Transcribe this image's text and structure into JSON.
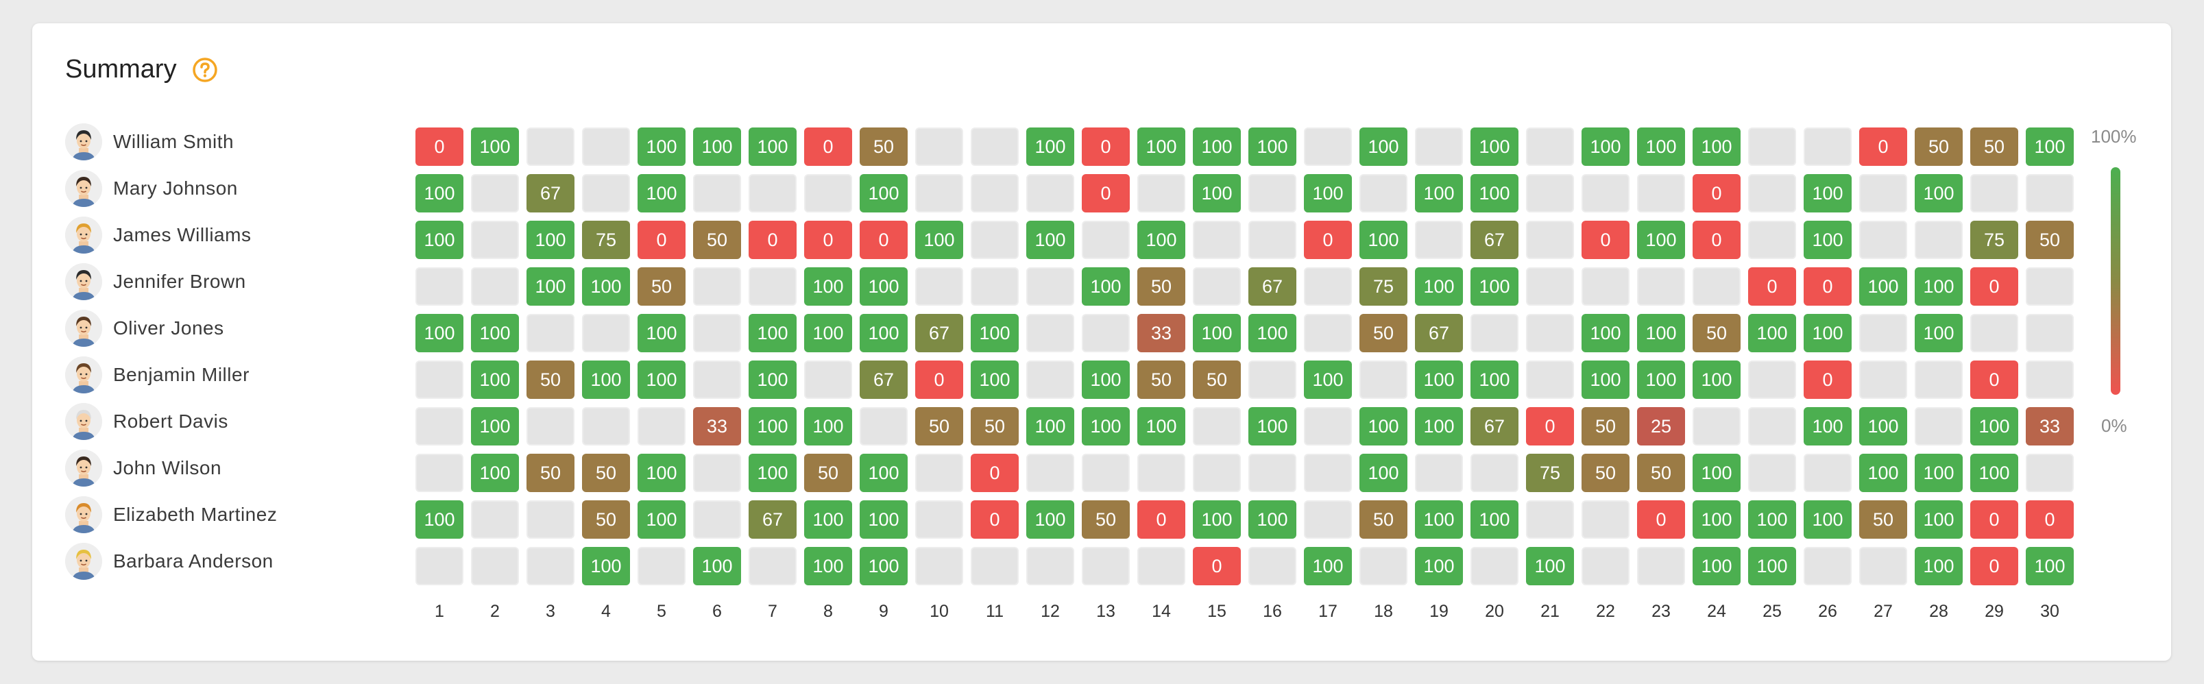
{
  "header": {
    "title": "Summary",
    "help_icon": "help-circle-icon",
    "accent_color": "#f5a623"
  },
  "colors": {
    "c100": "#4caf50",
    "c75": "#7d8b45",
    "c67": "#7d8b45",
    "c50": "#9b7b45",
    "c33": "#b8654b",
    "c25": "#c25a4e",
    "c0": "#ef5350",
    "empty": "#e4e4e4"
  },
  "legend": {
    "top_label": "100%",
    "bottom_label": "0%",
    "gradient_top": "#4caf50",
    "gradient_bottom": "#ef5350"
  },
  "columns": [
    "1",
    "2",
    "3",
    "4",
    "5",
    "6",
    "7",
    "8",
    "9",
    "10",
    "11",
    "12",
    "13",
    "14",
    "15",
    "16",
    "17",
    "18",
    "19",
    "20",
    "21",
    "22",
    "23",
    "24",
    "25",
    "26",
    "27",
    "28",
    "29",
    "30"
  ],
  "people": [
    {
      "name": "William Smith",
      "avatar": "avatar-icon",
      "values": [
        "0",
        "100",
        "",
        "",
        "100",
        "100",
        "100",
        "0",
        "50",
        "",
        "",
        "100",
        "0",
        "100",
        "100",
        "100",
        "",
        "100",
        "",
        "100",
        "",
        "100",
        "100",
        "100",
        "",
        "",
        "0",
        "50",
        "50",
        "100"
      ]
    },
    {
      "name": "Mary Johnson",
      "avatar": "avatar-icon",
      "values": [
        "100",
        "",
        "67",
        "",
        "100",
        "",
        "",
        "",
        "100",
        "",
        "",
        "",
        "0",
        "",
        "100",
        "",
        "100",
        "",
        "100",
        "100",
        "",
        "",
        "",
        "0",
        "",
        "100",
        "",
        "100",
        "",
        ""
      ]
    },
    {
      "name": "James Williams",
      "avatar": "avatar-icon",
      "values": [
        "100",
        "",
        "100",
        "75",
        "0",
        "50",
        "0",
        "0",
        "0",
        "100",
        "",
        "100",
        "",
        "100",
        "",
        "",
        "0",
        "100",
        "",
        "67",
        "",
        "0",
        "100",
        "0",
        "",
        "100",
        "",
        "",
        "75",
        "50"
      ]
    },
    {
      "name": "Jennifer Brown",
      "avatar": "avatar-icon",
      "values": [
        "",
        "",
        "100",
        "100",
        "50",
        "",
        "",
        "100",
        "100",
        "",
        "",
        "",
        "100",
        "50",
        "",
        "67",
        "",
        "75",
        "100",
        "100",
        "",
        "",
        "",
        "",
        "0",
        "0",
        "100",
        "100",
        "0",
        ""
      ]
    },
    {
      "name": "Oliver Jones",
      "avatar": "avatar-icon",
      "values": [
        "100",
        "100",
        "",
        "",
        "100",
        "",
        "100",
        "100",
        "100",
        "67",
        "100",
        "",
        "",
        "33",
        "100",
        "100",
        "",
        "50",
        "67",
        "",
        "",
        "100",
        "100",
        "50",
        "100",
        "100",
        "",
        "100",
        "",
        ""
      ]
    },
    {
      "name": "Benjamin Miller",
      "avatar": "avatar-icon",
      "values": [
        "",
        "100",
        "50",
        "100",
        "100",
        "",
        "100",
        "",
        "67",
        "0",
        "100",
        "",
        "100",
        "50",
        "50",
        "",
        "100",
        "",
        "100",
        "100",
        "",
        "100",
        "100",
        "100",
        "",
        "0",
        "",
        "",
        "0",
        ""
      ]
    },
    {
      "name": "Robert Davis",
      "avatar": "avatar-icon",
      "values": [
        "",
        "100",
        "",
        "",
        "",
        "33",
        "100",
        "100",
        "",
        "50",
        "50",
        "100",
        "100",
        "100",
        "",
        "100",
        "",
        "100",
        "100",
        "67",
        "0",
        "50",
        "25",
        "",
        "",
        "100",
        "100",
        "",
        "100",
        "33"
      ]
    },
    {
      "name": "John Wilson",
      "avatar": "avatar-icon",
      "values": [
        "",
        "100",
        "50",
        "50",
        "100",
        "",
        "100",
        "50",
        "100",
        "",
        "0",
        "",
        "",
        "",
        "",
        "",
        "",
        "100",
        "",
        "",
        "75",
        "50",
        "50",
        "100",
        "",
        "",
        "100",
        "100",
        "100",
        ""
      ]
    },
    {
      "name": "Elizabeth Martinez",
      "avatar": "avatar-icon",
      "values": [
        "100",
        "",
        "",
        "50",
        "100",
        "",
        "67",
        "100",
        "100",
        "",
        "0",
        "100",
        "50",
        "0",
        "100",
        "100",
        "",
        "50",
        "100",
        "100",
        "",
        "",
        "0",
        "100",
        "100",
        "100",
        "50",
        "100",
        "0",
        "0"
      ]
    },
    {
      "name": "Barbara Anderson",
      "avatar": "avatar-icon",
      "values": [
        "",
        "",
        "",
        "100",
        "",
        "100",
        "",
        "100",
        "100",
        "",
        "",
        "",
        "",
        "",
        "0",
        "",
        "100",
        "",
        "100",
        "",
        "100",
        "",
        "",
        "100",
        "100",
        "",
        "",
        "100",
        "0",
        "100"
      ]
    }
  ]
}
